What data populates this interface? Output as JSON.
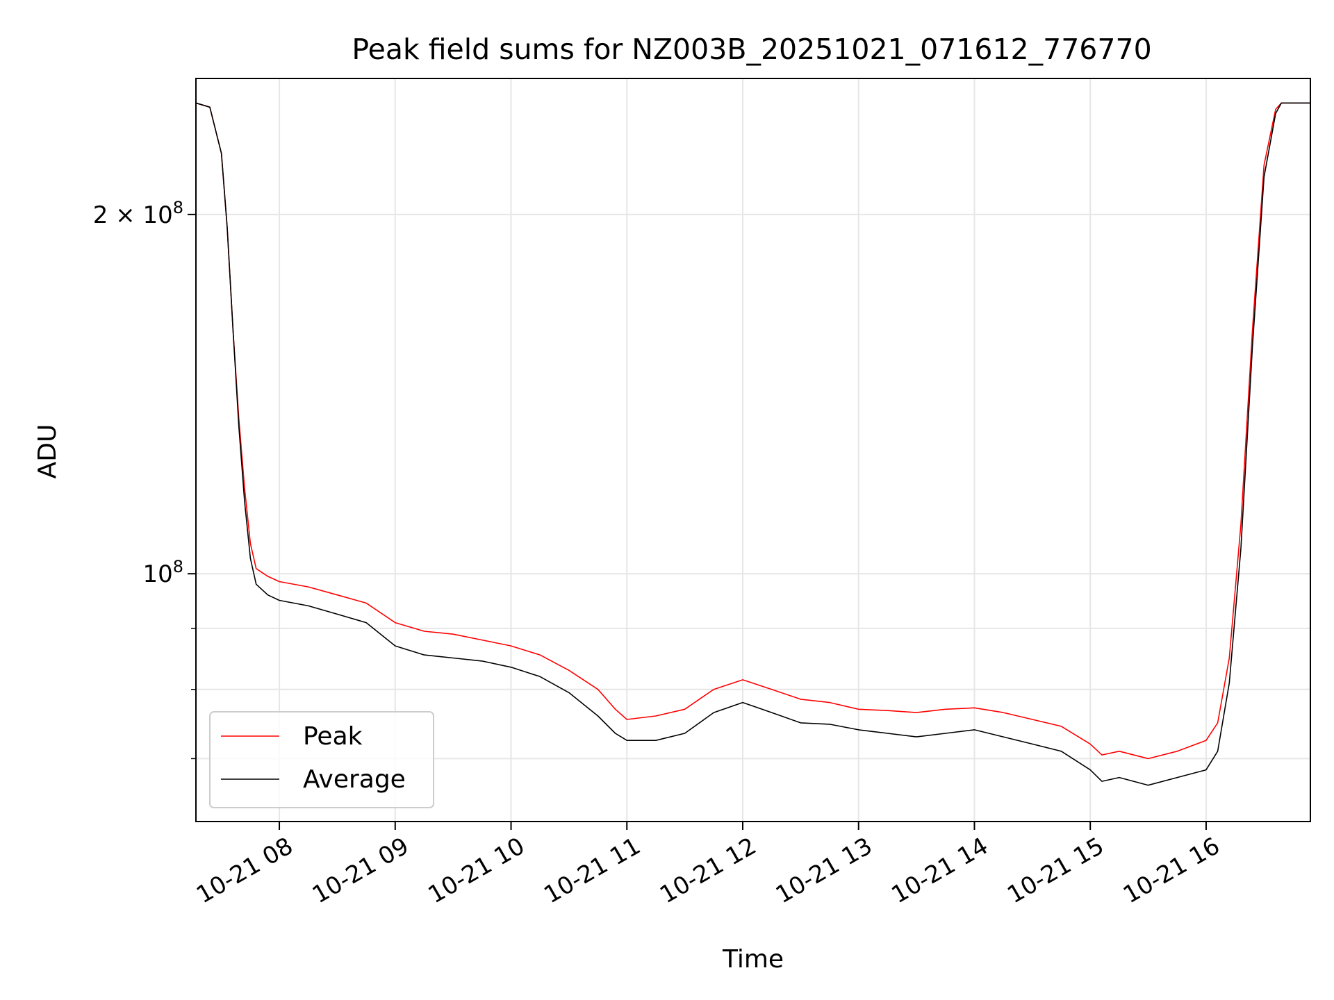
{
  "chart_data": {
    "type": "line",
    "title": "Peak field sums for NZ003B_20251021_071612_776770",
    "xlabel": "Time",
    "ylabel": "ADU",
    "yscale": "log",
    "ylim": [
      62000000,
      260000000
    ],
    "xlim_hours": [
      7.28,
      16.9
    ],
    "grid": true,
    "legend_position": "lower-left",
    "x_ticks": [
      {
        "value": 8,
        "label": "10-21 08"
      },
      {
        "value": 9,
        "label": "10-21 09"
      },
      {
        "value": 10,
        "label": "10-21 10"
      },
      {
        "value": 11,
        "label": "10-21 11"
      },
      {
        "value": 12,
        "label": "10-21 12"
      },
      {
        "value": 13,
        "label": "10-21 13"
      },
      {
        "value": 14,
        "label": "10-21 14"
      },
      {
        "value": 15,
        "label": "10-21 15"
      },
      {
        "value": 16,
        "label": "10-21 16"
      }
    ],
    "y_ticks": [
      {
        "value": 100000000,
        "base": "10",
        "exp": "8"
      },
      {
        "value": 200000000,
        "base": "2 × 10",
        "exp": "8"
      }
    ],
    "y_minor_ticks": [
      70000000,
      80000000,
      90000000
    ],
    "series": [
      {
        "name": "Peak",
        "color": "#ff0000",
        "x_hours": [
          7.28,
          7.4,
          7.5,
          7.55,
          7.6,
          7.65,
          7.7,
          7.75,
          7.8,
          7.9,
          8.0,
          8.25,
          8.5,
          8.75,
          9.0,
          9.25,
          9.5,
          9.75,
          10.0,
          10.25,
          10.5,
          10.75,
          10.9,
          11.0,
          11.25,
          11.5,
          11.75,
          12.0,
          12.25,
          12.5,
          12.75,
          13.0,
          13.25,
          13.5,
          13.75,
          14.0,
          14.25,
          14.5,
          14.75,
          15.0,
          15.1,
          15.25,
          15.5,
          15.75,
          16.0,
          16.1,
          16.2,
          16.3,
          16.4,
          16.5,
          16.6,
          16.65,
          16.75,
          16.9
        ],
        "values": [
          248000000,
          246000000,
          225000000,
          195000000,
          160000000,
          135000000,
          118000000,
          106000000,
          101000000,
          99500000,
          98500000,
          97500000,
          96000000,
          94500000,
          91000000,
          89500000,
          89000000,
          88000000,
          87000000,
          85500000,
          83000000,
          80000000,
          77000000,
          75500000,
          76000000,
          77000000,
          80000000,
          81500000,
          80000000,
          78500000,
          78000000,
          77000000,
          76800000,
          76500000,
          77000000,
          77200000,
          76500000,
          75500000,
          74500000,
          72000000,
          70500000,
          71000000,
          70000000,
          71000000,
          72500000,
          75000000,
          85000000,
          110000000,
          160000000,
          220000000,
          245000000,
          248000000,
          248000000,
          248000000
        ]
      },
      {
        "name": "Average",
        "color": "#000000",
        "x_hours": [
          7.28,
          7.4,
          7.5,
          7.55,
          7.6,
          7.65,
          7.7,
          7.75,
          7.8,
          7.9,
          8.0,
          8.25,
          8.5,
          8.75,
          9.0,
          9.25,
          9.5,
          9.75,
          10.0,
          10.25,
          10.5,
          10.75,
          10.9,
          11.0,
          11.25,
          11.5,
          11.75,
          12.0,
          12.25,
          12.5,
          12.75,
          13.0,
          13.25,
          13.5,
          13.75,
          14.0,
          14.25,
          14.5,
          14.75,
          15.0,
          15.1,
          15.25,
          15.5,
          15.75,
          16.0,
          16.1,
          16.2,
          16.3,
          16.4,
          16.5,
          16.6,
          16.65,
          16.75,
          16.9
        ],
        "values": [
          248000000,
          246000000,
          225000000,
          195000000,
          160000000,
          133000000,
          115000000,
          103000000,
          98000000,
          96000000,
          95000000,
          94000000,
          92500000,
          91000000,
          87000000,
          85500000,
          85000000,
          84500000,
          83500000,
          82000000,
          79500000,
          76000000,
          73500000,
          72500000,
          72500000,
          73500000,
          76500000,
          78000000,
          76500000,
          75000000,
          74800000,
          74000000,
          73500000,
          73000000,
          73500000,
          74000000,
          73000000,
          72000000,
          71000000,
          68500000,
          67000000,
          67500000,
          66500000,
          67500000,
          68500000,
          71000000,
          81000000,
          105000000,
          155000000,
          215000000,
          243000000,
          248000000,
          248000000,
          248000000
        ]
      }
    ]
  }
}
